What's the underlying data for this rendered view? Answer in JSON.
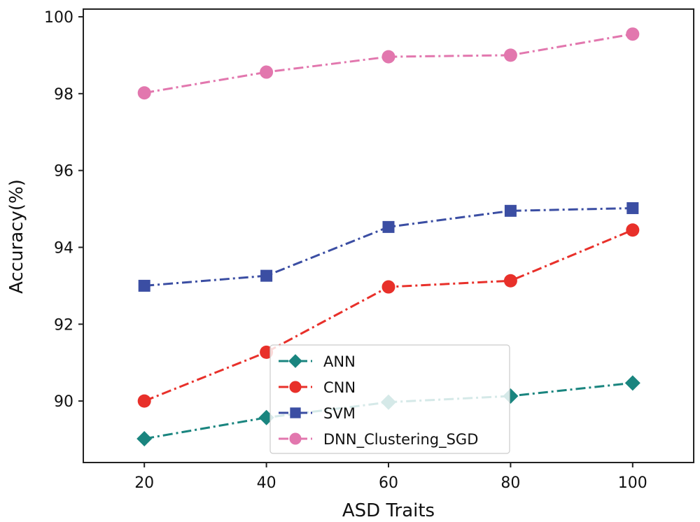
{
  "chart_data": {
    "type": "line",
    "title": "",
    "xlabel": "ASD Traits",
    "ylabel": "Accuracy(%)",
    "x": [
      20,
      40,
      60,
      80,
      100
    ],
    "x_ticks": [
      "20",
      "40",
      "60",
      "80",
      "100"
    ],
    "y_ticks": [
      "90",
      "92",
      "94",
      "96",
      "98",
      "100"
    ],
    "xlim": [
      10,
      110
    ],
    "ylim": [
      88.4,
      100.2
    ],
    "grid": false,
    "legend_position": "lower-center",
    "series": [
      {
        "name": "ANN",
        "values": [
          89.02,
          89.57,
          89.97,
          90.13,
          90.47
        ],
        "color": "#1a857f",
        "marker": "diamond"
      },
      {
        "name": "CNN",
        "values": [
          90.0,
          91.27,
          92.97,
          93.13,
          94.45
        ],
        "color": "#e8302a",
        "marker": "circle"
      },
      {
        "name": "SVM",
        "values": [
          93.0,
          93.26,
          94.53,
          94.95,
          95.02
        ],
        "color": "#3b4ea3",
        "marker": "square"
      },
      {
        "name": "DNN_Clustering_SGD",
        "values": [
          98.02,
          98.56,
          98.96,
          99.0,
          99.55
        ],
        "color": "#e277ae",
        "marker": "circle"
      }
    ]
  }
}
